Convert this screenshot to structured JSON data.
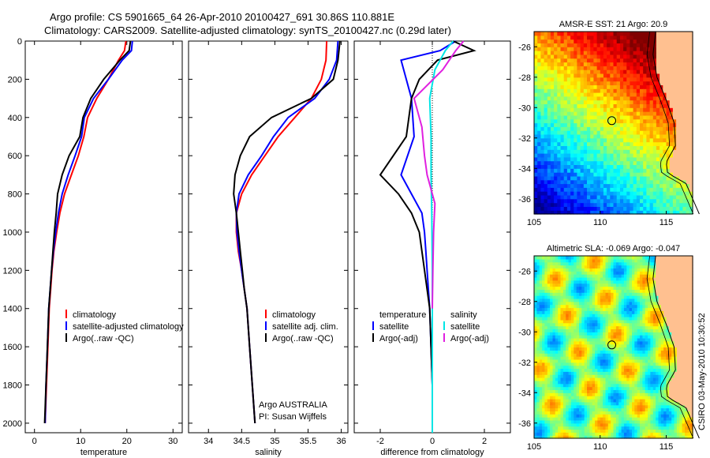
{
  "figure": {
    "title_line1": "Argo profile: CS 5901665_64 26-Apr-2010 20100427_691 30.86S 110.881E",
    "title_line2": "Climatology: CARS2009. Satellite-adjusted climatology: synTS_20100427.nc (0.29d later)",
    "side_text": "CSIRO 03-May-2010 10:30:52",
    "credit_line1": "Argo AUSTRALIA",
    "credit_line2": "PI: Susan Wijffels"
  },
  "colors": {
    "climatology": "#ff0000",
    "satellite": "#0000ff",
    "argo": "#000000",
    "sal_satellite": "#00e5e5",
    "sal_argo": "#e020e0",
    "land": "#ffc090"
  },
  "chart_data": [
    {
      "type": "line",
      "id": "temperature",
      "xlabel": "temperature",
      "ylabel": "",
      "xlim": [
        -2,
        32
      ],
      "ylim": [
        0,
        2050
      ],
      "y_reversed": true,
      "xticks": [
        0,
        10,
        20,
        30
      ],
      "yticks": [
        0,
        200,
        400,
        600,
        800,
        1000,
        1200,
        1400,
        1600,
        1800,
        2000
      ],
      "legend": [
        "climatology",
        "satellite-adjusted climatology",
        "Argo(..raw -QC)"
      ],
      "series": [
        {
          "name": "climatology",
          "color": "#ff0000",
          "x": [
            19.8,
            19.5,
            18.2,
            16,
            13.5,
            11.5,
            10.7,
            9.5,
            8,
            6.5,
            5.5,
            4.8,
            4.2,
            3.8,
            3.5,
            3.2,
            2.9,
            2.6,
            2.3
          ],
          "y": [
            0,
            50,
            100,
            200,
            300,
            400,
            500,
            600,
            700,
            800,
            900,
            1000,
            1100,
            1200,
            1300,
            1400,
            1600,
            1800,
            2000
          ]
        },
        {
          "name": "satellite-adjusted climatology",
          "color": "#0000ff",
          "x": [
            21.2,
            21,
            19,
            16,
            12.8,
            10.8,
            10.2,
            8.8,
            7.3,
            6,
            5.2,
            4.6,
            4.1,
            3.7,
            3.4,
            3.1,
            2.8,
            2.5,
            2.3
          ],
          "y": [
            0,
            50,
            100,
            200,
            300,
            400,
            500,
            600,
            700,
            800,
            900,
            1000,
            1100,
            1200,
            1300,
            1400,
            1600,
            1800,
            2000
          ]
        },
        {
          "name": "Argo(..raw -QC)",
          "color": "#000000",
          "x": [
            20.8,
            20.5,
            18.5,
            15,
            12.2,
            10.5,
            9.8,
            7.5,
            6,
            5,
            4.7,
            4.3,
            4,
            3.7,
            3.4,
            3.1,
            2.8,
            2.5,
            2.2
          ],
          "y": [
            0,
            50,
            100,
            200,
            300,
            400,
            500,
            600,
            700,
            800,
            900,
            1000,
            1100,
            1200,
            1300,
            1400,
            1600,
            1800,
            2000
          ]
        }
      ]
    },
    {
      "type": "line",
      "id": "salinity",
      "xlabel": "salinity",
      "ylabel": "",
      "xlim": [
        33.7,
        36.1
      ],
      "ylim": [
        0,
        2050
      ],
      "y_reversed": true,
      "xticks": [
        34,
        34.5,
        35,
        35.5,
        36
      ],
      "legend": [
        "climatology",
        "satellite adj. clim.",
        "Argo(..raw -QC)"
      ],
      "series": [
        {
          "name": "climatology",
          "color": "#ff0000",
          "x": [
            35.78,
            35.77,
            35.7,
            35.55,
            35.3,
            35.05,
            34.85,
            34.65,
            34.5,
            34.42,
            34.42,
            34.45,
            34.5,
            34.54,
            34.58,
            34.62,
            34.66,
            34.7
          ],
          "y": [
            0,
            100,
            200,
            300,
            400,
            500,
            600,
            700,
            800,
            900,
            1000,
            1100,
            1200,
            1300,
            1400,
            1600,
            1800,
            2000
          ]
        },
        {
          "name": "satellite adj. clim.",
          "color": "#0000ff",
          "x": [
            35.95,
            35.93,
            35.82,
            35.6,
            35.2,
            34.98,
            34.8,
            34.6,
            34.46,
            34.42,
            34.43,
            34.46,
            34.5,
            34.54,
            34.58,
            34.62,
            34.66,
            34.7
          ],
          "y": [
            0,
            100,
            200,
            300,
            400,
            500,
            600,
            700,
            800,
            900,
            1000,
            1100,
            1200,
            1300,
            1400,
            1600,
            1800,
            2000
          ]
        },
        {
          "name": "Argo(..raw -QC)",
          "color": "#000000",
          "x": [
            35.98,
            35.95,
            35.88,
            35.55,
            34.95,
            34.62,
            34.48,
            34.4,
            34.38,
            34.42,
            34.45,
            34.48,
            34.51,
            34.54,
            34.58,
            34.62,
            34.66,
            34.7
          ],
          "y": [
            0,
            100,
            200,
            300,
            400,
            500,
            600,
            700,
            800,
            900,
            1000,
            1100,
            1200,
            1300,
            1400,
            1600,
            1800,
            2000
          ]
        }
      ]
    },
    {
      "type": "line",
      "id": "difference",
      "xlabel": "difference from climatology",
      "ylabel": "",
      "xlim": [
        -3,
        3
      ],
      "ylim": [
        0,
        2050
      ],
      "y_reversed": true,
      "xticks": [
        -2,
        0,
        2
      ],
      "legend_headers": [
        "temperature",
        "salinity"
      ],
      "legend": [
        "satellite",
        "Argo(-adj)",
        "satellite",
        "Argo(-adj)"
      ],
      "series": [
        {
          "name": "satellite",
          "group": "temperature",
          "color": "#0000ff",
          "x": [
            0.9,
            0.3,
            -1.2,
            -1.0,
            -0.8,
            -0.7,
            -1.2,
            -0.8,
            -0.4,
            -0.3,
            -0.25,
            -0.2,
            -0.15,
            -0.1,
            -0.05,
            0,
            0
          ],
          "y": [
            0,
            50,
            100,
            200,
            300,
            500,
            700,
            800,
            900,
            1000,
            1100,
            1200,
            1300,
            1400,
            1600,
            1800,
            1950
          ]
        },
        {
          "name": "Argo(-adj)",
          "group": "temperature",
          "color": "#000000",
          "x": [
            0.8,
            1.6,
            0.2,
            -0.5,
            -0.8,
            -1.0,
            -2.0,
            -1.3,
            -0.8,
            -0.5,
            -0.4,
            -0.3,
            -0.2,
            -0.1,
            -0.05,
            0,
            0
          ],
          "y": [
            0,
            50,
            100,
            200,
            300,
            500,
            700,
            800,
            900,
            1000,
            1100,
            1200,
            1300,
            1400,
            1600,
            1800,
            1950
          ]
        },
        {
          "name": "satellite",
          "group": "salinity",
          "color": "#00e5e5",
          "x": [
            0.8,
            0.5,
            0.1,
            -0.1,
            -0.05,
            -0.05,
            -0.02,
            0,
            0,
            0
          ],
          "y": [
            0,
            50,
            150,
            300,
            500,
            700,
            900,
            1200,
            1600,
            2050
          ]
        },
        {
          "name": "Argo(-adj)",
          "group": "salinity",
          "color": "#e020e0",
          "x": [
            1.2,
            0.9,
            0.4,
            -0.7,
            -0.4,
            -0.3,
            -0.2,
            0.1,
            0.05,
            0.02,
            0
          ],
          "y": [
            0,
            50,
            150,
            300,
            450,
            600,
            700,
            850,
            1000,
            1200,
            1400
          ]
        }
      ]
    },
    {
      "type": "heatmap",
      "id": "sst_map",
      "title": "AMSR-E SST: 21 Argo: 20.9",
      "xlim": [
        105,
        117
      ],
      "ylim": [
        -37,
        -25
      ],
      "xticks": [
        105,
        110,
        115
      ],
      "yticks": [
        -26,
        -28,
        -30,
        -32,
        -34,
        -36
      ],
      "float_position": [
        110.881,
        -30.86
      ]
    },
    {
      "type": "heatmap",
      "id": "sla_map",
      "title": "Altimetric SLA: -0.069 Argo: -0.047",
      "xlim": [
        105,
        117
      ],
      "ylim": [
        -37,
        -25
      ],
      "xticks": [
        105,
        110,
        115
      ],
      "yticks": [
        -26,
        -28,
        -30,
        -32,
        -34,
        -36
      ],
      "float_position": [
        110.881,
        -30.86
      ]
    }
  ]
}
